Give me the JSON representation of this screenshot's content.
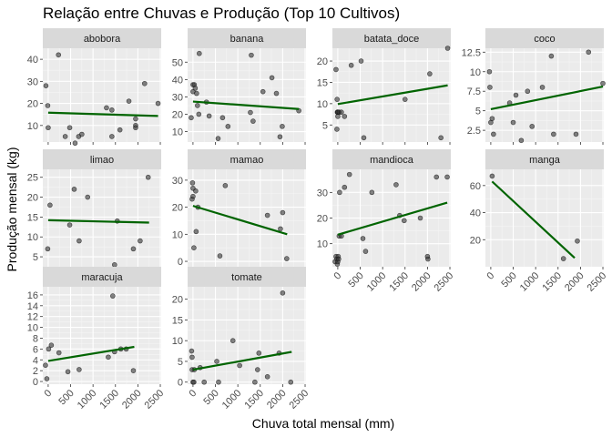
{
  "chart_data": {
    "type": "scatter",
    "title": "Relação entre Chuvas e Produção (Top 10 Cultivos)",
    "xlabel": "Chuva total mensal (mm)",
    "ylabel": "Produção mensal (kg)",
    "x_ticks": [
      "0",
      "500",
      "1000",
      "1500",
      "2000",
      "2500"
    ],
    "x_tick_values": [
      0,
      500,
      1000,
      1500,
      2000,
      2500
    ],
    "xlim": [
      -120,
      2520
    ],
    "grid": true,
    "point_color": "#333333",
    "trend_color": "#006400",
    "strip_color": "#d9d9d9",
    "panel_bg": "#ebebeb",
    "panels": [
      {
        "name": "abobora",
        "ylim": [
          2.5,
          45
        ],
        "y_ticks": [
          10,
          20,
          30,
          40
        ],
        "points": [
          [
            -50,
            28
          ],
          [
            -10,
            19
          ],
          [
            0,
            9
          ],
          [
            230,
            42
          ],
          [
            380,
            5
          ],
          [
            480,
            9
          ],
          [
            600,
            2
          ],
          [
            680,
            5
          ],
          [
            750,
            6
          ],
          [
            1300,
            18
          ],
          [
            1420,
            17
          ],
          [
            1420,
            5
          ],
          [
            1600,
            8
          ],
          [
            1800,
            21
          ],
          [
            1950,
            10
          ],
          [
            1950,
            9
          ],
          [
            1950,
            13
          ],
          [
            2150,
            29
          ],
          [
            2450,
            20
          ]
        ],
        "trend": [
          [
            0,
            15.8
          ],
          [
            2450,
            14.3
          ]
        ]
      },
      {
        "name": "banana",
        "ylim": [
          4,
          58
        ],
        "y_ticks": [
          10,
          20,
          30,
          40,
          50
        ],
        "points": [
          [
            -40,
            18
          ],
          [
            0,
            37
          ],
          [
            0,
            33
          ],
          [
            30,
            37
          ],
          [
            50,
            35
          ],
          [
            80,
            32
          ],
          [
            100,
            25
          ],
          [
            130,
            20
          ],
          [
            140,
            55
          ],
          [
            300,
            27
          ],
          [
            360,
            19
          ],
          [
            560,
            6
          ],
          [
            660,
            18
          ],
          [
            780,
            13
          ],
          [
            1280,
            21
          ],
          [
            1300,
            54
          ],
          [
            1340,
            16
          ],
          [
            1560,
            33
          ],
          [
            1760,
            41
          ],
          [
            1860,
            32
          ],
          [
            1940,
            7
          ],
          [
            1990,
            13
          ],
          [
            2360,
            22
          ]
        ],
        "trend": [
          [
            0,
            27.3
          ],
          [
            2360,
            23.0
          ]
        ]
      },
      {
        "name": "batata_doce",
        "ylim": [
          1,
          23
        ],
        "y_ticks": [
          5,
          10,
          15,
          20
        ],
        "points": [
          [
            -40,
            18
          ],
          [
            -20,
            4
          ],
          [
            -15,
            11
          ],
          [
            -10,
            8
          ],
          [
            0,
            8
          ],
          [
            0,
            8
          ],
          [
            0,
            7
          ],
          [
            30,
            8
          ],
          [
            80,
            8
          ],
          [
            150,
            7
          ],
          [
            300,
            19
          ],
          [
            520,
            20
          ],
          [
            580,
            2
          ],
          [
            1500,
            11
          ],
          [
            2050,
            17
          ],
          [
            2300,
            2
          ],
          [
            2450,
            23
          ]
        ],
        "trend": [
          [
            0,
            9.9
          ],
          [
            2450,
            14.3
          ]
        ]
      },
      {
        "name": "coco",
        "ylim": [
          1,
          13
        ],
        "y_ticks": [
          2.5,
          5.0,
          7.5,
          10.0,
          12.5
        ],
        "points": [
          [
            -30,
            10
          ],
          [
            -20,
            8
          ],
          [
            0,
            3.5
          ],
          [
            30,
            4
          ],
          [
            60,
            2
          ],
          [
            420,
            6
          ],
          [
            500,
            3.5
          ],
          [
            560,
            7
          ],
          [
            680,
            1.2
          ],
          [
            820,
            7.5
          ],
          [
            920,
            3
          ],
          [
            1150,
            8
          ],
          [
            1350,
            12
          ],
          [
            1400,
            2
          ],
          [
            1900,
            2
          ],
          [
            2180,
            12.5
          ],
          [
            2500,
            8.5
          ]
        ],
        "trend": [
          [
            0,
            5.2
          ],
          [
            2500,
            8.1
          ]
        ]
      },
      {
        "name": "limao",
        "ylim": [
          2.5,
          27
        ],
        "y_ticks": [
          5,
          10,
          15,
          20,
          25
        ],
        "points": [
          [
            -10,
            7
          ],
          [
            40,
            18
          ],
          [
            480,
            13
          ],
          [
            580,
            22
          ],
          [
            690,
            9
          ],
          [
            880,
            20
          ],
          [
            1480,
            3
          ],
          [
            1540,
            14
          ],
          [
            1900,
            7
          ],
          [
            2050,
            9
          ],
          [
            2230,
            25
          ]
        ],
        "trend": [
          [
            0,
            14.2
          ],
          [
            2250,
            13.6
          ]
        ]
      },
      {
        "name": "mamao",
        "ylim": [
          -2,
          34
        ],
        "y_ticks": [
          0,
          10,
          20,
          30
        ],
        "points": [
          [
            -20,
            23
          ],
          [
            -10,
            29
          ],
          [
            0,
            27
          ],
          [
            0,
            24
          ],
          [
            20,
            5
          ],
          [
            60,
            26
          ],
          [
            70,
            11
          ],
          [
            110,
            20
          ],
          [
            600,
            2
          ],
          [
            720,
            28
          ],
          [
            1660,
            17
          ],
          [
            1950,
            12
          ],
          [
            2000,
            18
          ],
          [
            2090,
            1
          ]
        ],
        "trend": [
          [
            0,
            20.5
          ],
          [
            2100,
            10.0
          ]
        ]
      },
      {
        "name": "mandioca",
        "ylim": [
          1,
          39
        ],
        "y_ticks": [
          10,
          20,
          30
        ],
        "points": [
          [
            -60,
            3
          ],
          [
            -40,
            5
          ],
          [
            -20,
            4
          ],
          [
            -10,
            2
          ],
          [
            0,
            3
          ],
          [
            10,
            5
          ],
          [
            20,
            4
          ],
          [
            30,
            13
          ],
          [
            40,
            30
          ],
          [
            80,
            13
          ],
          [
            150,
            32
          ],
          [
            260,
            37
          ],
          [
            560,
            12
          ],
          [
            620,
            7
          ],
          [
            760,
            30
          ],
          [
            1300,
            33
          ],
          [
            1380,
            21
          ],
          [
            1480,
            19
          ],
          [
            1840,
            20
          ],
          [
            2010,
            4
          ],
          [
            2200,
            36
          ],
          [
            2440,
            36
          ],
          [
            2000,
            5
          ]
        ],
        "trend": [
          [
            0,
            13.5
          ],
          [
            2440,
            26.0
          ]
        ]
      },
      {
        "name": "manga",
        "ylim": [
          0,
          72
        ],
        "y_ticks": [
          20,
          40,
          60
        ],
        "points": [
          [
            30,
            67
          ],
          [
            1620,
            6
          ],
          [
            1930,
            19
          ]
        ],
        "trend": [
          [
            30,
            63
          ],
          [
            1870,
            6.5
          ]
        ]
      },
      {
        "name": "maracuja",
        "ylim": [
          -0.5,
          17.5
        ],
        "y_ticks": [
          0,
          2,
          4,
          6,
          8,
          10,
          12,
          14,
          16
        ],
        "points": [
          [
            -60,
            3
          ],
          [
            -30,
            0.5
          ],
          [
            10,
            6
          ],
          [
            70,
            6.7
          ],
          [
            240,
            5.3
          ],
          [
            440,
            1.8
          ],
          [
            690,
            2.2
          ],
          [
            1340,
            4.5
          ],
          [
            1440,
            15.8
          ],
          [
            1480,
            5.5
          ],
          [
            1620,
            6
          ],
          [
            1740,
            6
          ],
          [
            1900,
            2
          ]
        ],
        "trend": [
          [
            0,
            3.8
          ],
          [
            1920,
            6.4
          ]
        ]
      },
      {
        "name": "tomate",
        "ylim": [
          -0.5,
          23
        ],
        "y_ticks": [
          0,
          5,
          10,
          15,
          20
        ],
        "points": [
          [
            -30,
            7.5
          ],
          [
            -20,
            6
          ],
          [
            -20,
            3
          ],
          [
            0,
            0
          ],
          [
            20,
            0
          ],
          [
            30,
            3
          ],
          [
            160,
            3.5
          ],
          [
            250,
            0
          ],
          [
            530,
            5
          ],
          [
            570,
            0
          ],
          [
            890,
            10
          ],
          [
            1040,
            4
          ],
          [
            1380,
            0
          ],
          [
            1440,
            3
          ],
          [
            1470,
            7
          ],
          [
            1660,
            1.3
          ],
          [
            1920,
            7
          ],
          [
            2000,
            21.5
          ],
          [
            2180,
            0
          ]
        ],
        "trend": [
          [
            0,
            3.0
          ],
          [
            2200,
            7.3
          ]
        ]
      }
    ]
  }
}
